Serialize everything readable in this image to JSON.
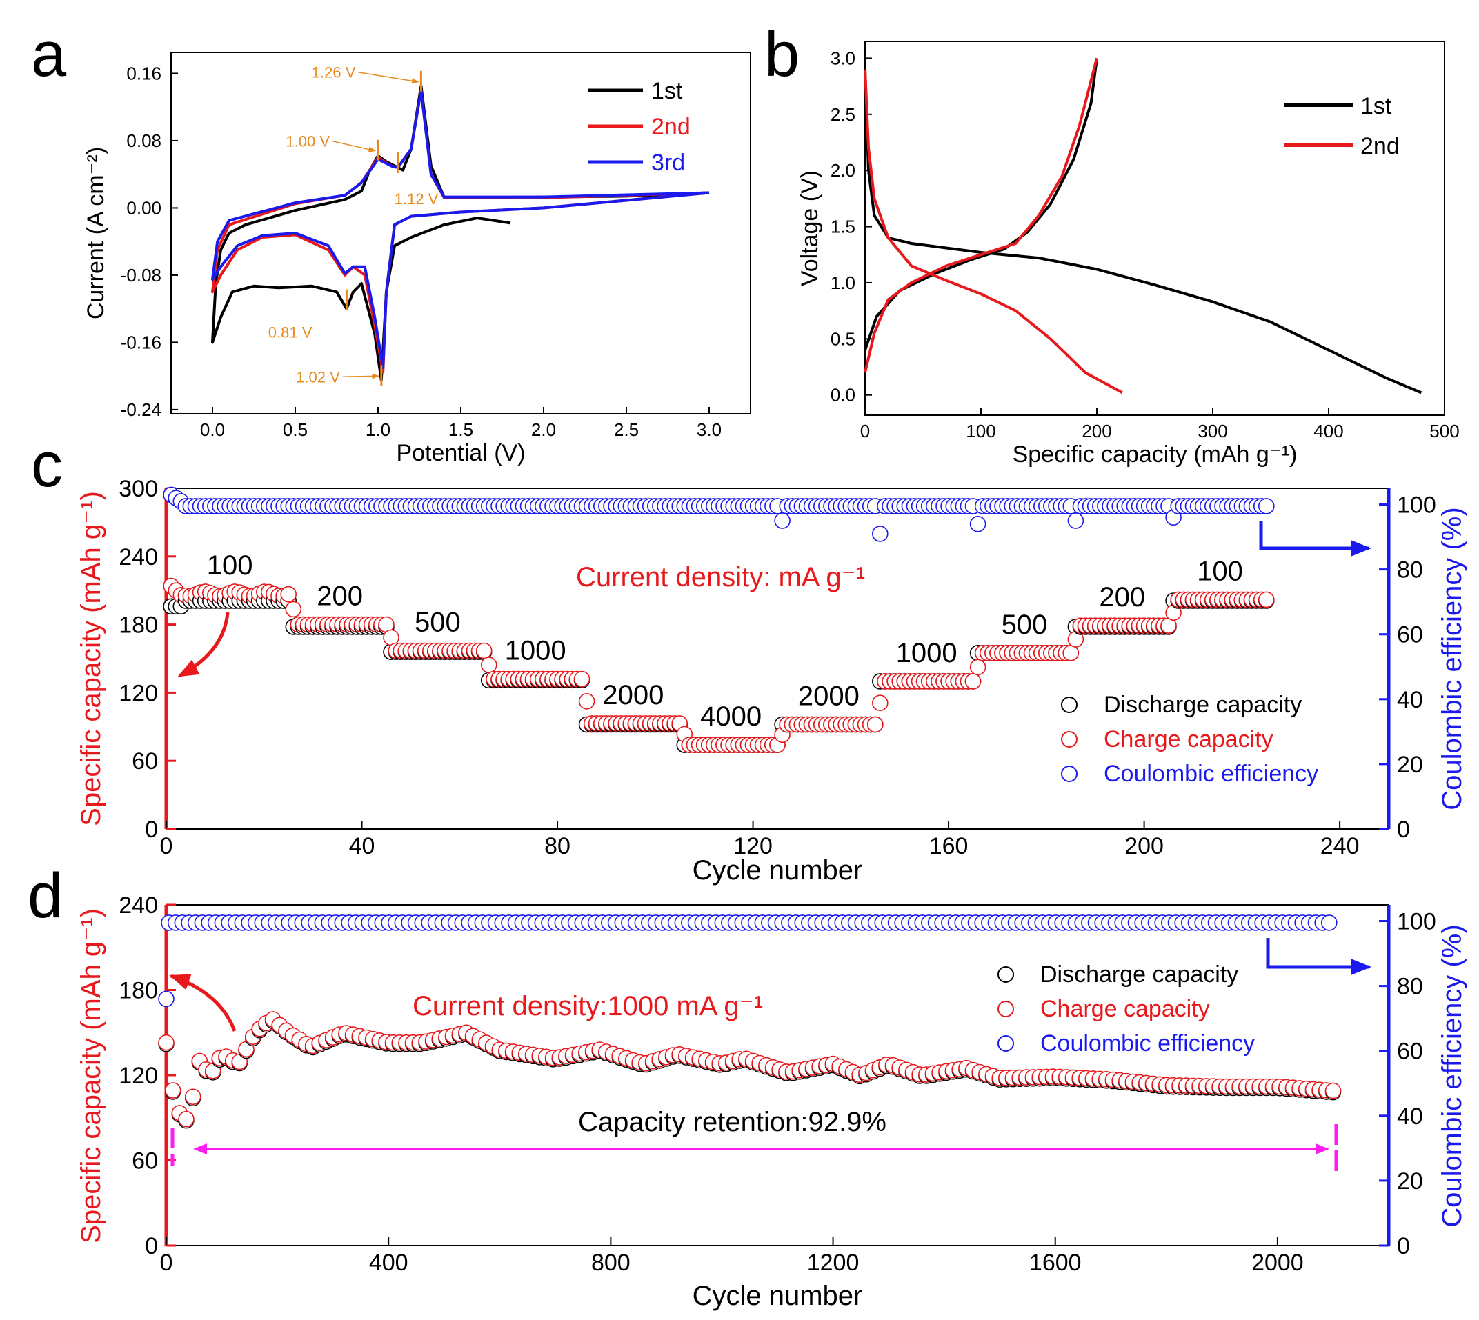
{
  "panels": {
    "a": "a",
    "b": "b",
    "c": "c",
    "d": "d"
  },
  "chart_data": [
    {
      "panel": "a",
      "type": "line",
      "title": "",
      "xlabel": "Potential (V)",
      "ylabel": "Current (A cm⁻²)",
      "xlim": [
        -0.25,
        3.25
      ],
      "ylim": [
        -0.245,
        0.185
      ],
      "x_ticks": [
        "0.0",
        "0.5",
        "1.0",
        "1.5",
        "2.0",
        "2.5",
        "3.0"
      ],
      "y_ticks": [
        "0.16",
        "0.08",
        "0.00",
        "-0.08",
        "-0.16",
        "-0.24"
      ],
      "legend": [
        {
          "label": "1st",
          "color": "#000000"
        },
        {
          "label": "2nd",
          "color": "#e8191c"
        },
        {
          "label": "3rd",
          "color": "#1a1aef"
        }
      ],
      "annotations": [
        {
          "text": "1.26 V",
          "x": 1.26,
          "y": 0.145
        },
        {
          "text": "1.00 V",
          "x": 1.0,
          "y": 0.063
        },
        {
          "text": "1.12 V",
          "x": 1.12,
          "y": 0.048
        },
        {
          "text": "0.81 V",
          "x": 0.81,
          "y": -0.115
        },
        {
          "text": "1.02 V",
          "x": 1.02,
          "y": -0.205
        }
      ],
      "series": [
        {
          "name": "1st",
          "cathodic": [
            [
              1.8,
              -0.018
            ],
            [
              1.6,
              -0.012
            ],
            [
              1.4,
              -0.02
            ],
            [
              1.2,
              -0.035
            ],
            [
              1.1,
              -0.045
            ],
            [
              1.05,
              -0.1
            ],
            [
              1.02,
              -0.205
            ],
            [
              0.98,
              -0.15
            ],
            [
              0.9,
              -0.09
            ],
            [
              0.85,
              -0.1
            ],
            [
              0.81,
              -0.12
            ],
            [
              0.75,
              -0.1
            ],
            [
              0.6,
              -0.093
            ],
            [
              0.4,
              -0.095
            ],
            [
              0.25,
              -0.093
            ],
            [
              0.12,
              -0.1
            ],
            [
              0.05,
              -0.13
            ],
            [
              0.0,
              -0.16
            ]
          ],
          "anodic": [
            [
              0.0,
              -0.16
            ],
            [
              0.02,
              -0.09
            ],
            [
              0.05,
              -0.05
            ],
            [
              0.1,
              -0.03
            ],
            [
              0.2,
              -0.02
            ],
            [
              0.5,
              -0.003
            ],
            [
              0.8,
              0.01
            ],
            [
              0.9,
              0.02
            ],
            [
              0.95,
              0.045
            ],
            [
              1.0,
              0.062
            ],
            [
              1.05,
              0.055
            ],
            [
              1.1,
              0.05
            ],
            [
              1.15,
              0.045
            ],
            [
              1.2,
              0.07
            ],
            [
              1.26,
              0.145
            ],
            [
              1.32,
              0.05
            ],
            [
              1.4,
              0.012
            ],
            [
              2.0,
              0.013
            ],
            [
              2.5,
              0.014
            ],
            [
              3.0,
              0.018
            ]
          ]
        },
        {
          "name": "2nd",
          "cathodic": [
            [
              3.0,
              0.018
            ],
            [
              2.0,
              0.0
            ],
            [
              1.5,
              -0.005
            ],
            [
              1.2,
              -0.01
            ],
            [
              1.1,
              -0.02
            ],
            [
              1.05,
              -0.1
            ],
            [
              1.03,
              -0.195
            ],
            [
              0.98,
              -0.14
            ],
            [
              0.92,
              -0.08
            ],
            [
              0.85,
              -0.07
            ],
            [
              0.8,
              -0.08
            ],
            [
              0.7,
              -0.05
            ],
            [
              0.5,
              -0.032
            ],
            [
              0.3,
              -0.035
            ],
            [
              0.15,
              -0.05
            ],
            [
              0.05,
              -0.08
            ],
            [
              0.0,
              -0.1
            ]
          ],
          "anodic": [
            [
              0.0,
              -0.1
            ],
            [
              0.03,
              -0.05
            ],
            [
              0.1,
              -0.02
            ],
            [
              0.5,
              0.005
            ],
            [
              0.8,
              0.015
            ],
            [
              0.9,
              0.03
            ],
            [
              1.0,
              0.06
            ],
            [
              1.08,
              0.05
            ],
            [
              1.12,
              0.048
            ],
            [
              1.2,
              0.07
            ],
            [
              1.26,
              0.14
            ],
            [
              1.32,
              0.04
            ],
            [
              1.4,
              0.012
            ],
            [
              2.0,
              0.012
            ],
            [
              3.0,
              0.018
            ]
          ]
        },
        {
          "name": "3rd",
          "cathodic": [
            [
              3.0,
              0.018
            ],
            [
              2.0,
              0.0
            ],
            [
              1.5,
              -0.005
            ],
            [
              1.2,
              -0.01
            ],
            [
              1.1,
              -0.02
            ],
            [
              1.05,
              -0.1
            ],
            [
              1.03,
              -0.19
            ],
            [
              0.98,
              -0.13
            ],
            [
              0.92,
              -0.07
            ],
            [
              0.85,
              -0.07
            ],
            [
              0.8,
              -0.078
            ],
            [
              0.7,
              -0.045
            ],
            [
              0.5,
              -0.03
            ],
            [
              0.3,
              -0.033
            ],
            [
              0.15,
              -0.045
            ],
            [
              0.05,
              -0.07
            ],
            [
              0.0,
              -0.085
            ]
          ],
          "anodic": [
            [
              0.0,
              -0.085
            ],
            [
              0.03,
              -0.04
            ],
            [
              0.1,
              -0.015
            ],
            [
              0.5,
              0.006
            ],
            [
              0.8,
              0.015
            ],
            [
              0.9,
              0.03
            ],
            [
              1.0,
              0.058
            ],
            [
              1.08,
              0.05
            ],
            [
              1.12,
              0.048
            ],
            [
              1.2,
              0.07
            ],
            [
              1.26,
              0.14
            ],
            [
              1.32,
              0.04
            ],
            [
              1.4,
              0.013
            ],
            [
              2.0,
              0.013
            ],
            [
              3.0,
              0.018
            ]
          ]
        }
      ]
    },
    {
      "panel": "b",
      "type": "line",
      "title": "",
      "xlabel": "Specific capacity (mAh g⁻¹)",
      "ylabel": "Voltage (V)",
      "xlim": [
        0,
        500
      ],
      "ylim": [
        -0.18,
        3.15
      ],
      "x_ticks": [
        "0",
        "100",
        "200",
        "300",
        "400",
        "500"
      ],
      "y_ticks": [
        "0.0",
        "0.5",
        "1.0",
        "1.5",
        "2.0",
        "2.5",
        "3.0"
      ],
      "legend": [
        {
          "label": "1st",
          "color": "#000000"
        },
        {
          "label": "2nd",
          "color": "#e8191c"
        }
      ],
      "series": [
        {
          "name": "1st",
          "discharge": [
            [
              0,
              2.9
            ],
            [
              3,
              2.0
            ],
            [
              8,
              1.6
            ],
            [
              20,
              1.4
            ],
            [
              40,
              1.35
            ],
            [
              100,
              1.27
            ],
            [
              150,
              1.22
            ],
            [
              200,
              1.12
            ],
            [
              250,
              0.98
            ],
            [
              300,
              0.83
            ],
            [
              350,
              0.65
            ],
            [
              400,
              0.4
            ],
            [
              450,
              0.15
            ],
            [
              480,
              0.02
            ]
          ],
          "charge": [
            [
              0,
              0.4
            ],
            [
              10,
              0.7
            ],
            [
              30,
              0.93
            ],
            [
              60,
              1.08
            ],
            [
              90,
              1.2
            ],
            [
              120,
              1.3
            ],
            [
              140,
              1.45
            ],
            [
              160,
              1.7
            ],
            [
              180,
              2.1
            ],
            [
              195,
              2.6
            ],
            [
              200,
              3.0
            ]
          ]
        },
        {
          "name": "2nd",
          "discharge": [
            [
              0,
              2.9
            ],
            [
              3,
              2.2
            ],
            [
              8,
              1.75
            ],
            [
              20,
              1.4
            ],
            [
              40,
              1.15
            ],
            [
              70,
              1.02
            ],
            [
              100,
              0.9
            ],
            [
              130,
              0.75
            ],
            [
              160,
              0.5
            ],
            [
              190,
              0.2
            ],
            [
              222,
              0.02
            ]
          ],
          "charge": [
            [
              0,
              0.2
            ],
            [
              8,
              0.55
            ],
            [
              20,
              0.85
            ],
            [
              40,
              1.0
            ],
            [
              70,
              1.15
            ],
            [
              100,
              1.25
            ],
            [
              130,
              1.35
            ],
            [
              150,
              1.6
            ],
            [
              170,
              1.95
            ],
            [
              185,
              2.4
            ],
            [
              200,
              3.0
            ]
          ]
        }
      ]
    },
    {
      "panel": "c",
      "type": "scatter",
      "title": "Current density: mA g⁻¹",
      "xlabel": "Cycle number",
      "ylabel": "Specific capacity (mAh g⁻¹)",
      "y2label": "Coulombic efficiency (%)",
      "xlim": [
        0,
        250
      ],
      "ylim": [
        0,
        300
      ],
      "y2lim": [
        0,
        105
      ],
      "x_ticks": [
        "0",
        "40",
        "80",
        "120",
        "160",
        "200",
        "240"
      ],
      "y_ticks": [
        "0",
        "60",
        "120",
        "180",
        "240",
        "300"
      ],
      "y2_ticks": [
        "0",
        "20",
        "40",
        "60",
        "80",
        "100"
      ],
      "rates": [
        {
          "label": "100",
          "cycle_start": 1,
          "cycle_end": 25,
          "discharge_capacity": 201,
          "charge_capacity": 207
        },
        {
          "label": "200",
          "cycle_start": 26,
          "cycle_end": 45,
          "discharge_capacity": 178,
          "charge_capacity": 180
        },
        {
          "label": "500",
          "cycle_start": 46,
          "cycle_end": 65,
          "discharge_capacity": 156,
          "charge_capacity": 157
        },
        {
          "label": "1000",
          "cycle_start": 66,
          "cycle_end": 85,
          "discharge_capacity": 131,
          "charge_capacity": 132
        },
        {
          "label": "2000",
          "cycle_start": 86,
          "cycle_end": 105,
          "discharge_capacity": 92,
          "charge_capacity": 93
        },
        {
          "label": "4000",
          "cycle_start": 106,
          "cycle_end": 125,
          "discharge_capacity": 74,
          "charge_capacity": 74
        },
        {
          "label": "2000",
          "cycle_start": 126,
          "cycle_end": 145,
          "discharge_capacity": 92,
          "charge_capacity": 92
        },
        {
          "label": "1000",
          "cycle_start": 146,
          "cycle_end": 165,
          "discharge_capacity": 130,
          "charge_capacity": 130
        },
        {
          "label": "500",
          "cycle_start": 166,
          "cycle_end": 185,
          "discharge_capacity": 155,
          "charge_capacity": 155
        },
        {
          "label": "200",
          "cycle_start": 186,
          "cycle_end": 205,
          "discharge_capacity": 178,
          "charge_capacity": 179
        },
        {
          "label": "100",
          "cycle_start": 206,
          "cycle_end": 225,
          "discharge_capacity": 201,
          "charge_capacity": 202
        }
      ],
      "coulombic_efficiency": {
        "typical": 99.5,
        "first_cycles": [
          103,
          102,
          101
        ],
        "dips": [
          [
            126,
            95
          ],
          [
            146,
            91
          ],
          [
            166,
            94
          ],
          [
            186,
            95
          ],
          [
            206,
            96
          ]
        ]
      },
      "legend": [
        {
          "label": "Discharge capacity",
          "color": "#000000"
        },
        {
          "label": "Charge capacity",
          "color": "#e8191c"
        },
        {
          "label": "Coulombic efficiency",
          "color": "#1a1aef"
        }
      ]
    },
    {
      "panel": "d",
      "type": "scatter",
      "title": "Current density:1000  mA g⁻¹",
      "annotation": "Capacity retention:92.9%",
      "xlabel": "Cycle number",
      "ylabel": "Specific capacity (mAh g⁻¹)",
      "y2label": "Coulombic efficiency (%)",
      "xlim": [
        0,
        2200
      ],
      "ylim": [
        0,
        240
      ],
      "y2lim": [
        0,
        105
      ],
      "x_ticks": [
        "0",
        "400",
        "800",
        "1200",
        "1600",
        "2000"
      ],
      "y_ticks": [
        "0",
        "60",
        "120",
        "180",
        "240"
      ],
      "y2_ticks": [
        "0",
        "20",
        "40",
        "60",
        "80",
        "100"
      ],
      "capacity_trend": [
        [
          0,
          143
        ],
        [
          10,
          112
        ],
        [
          25,
          92
        ],
        [
          40,
          88
        ],
        [
          60,
          130
        ],
        [
          80,
          120
        ],
        [
          100,
          135
        ],
        [
          130,
          128
        ],
        [
          160,
          150
        ],
        [
          190,
          160
        ],
        [
          220,
          150
        ],
        [
          260,
          140
        ],
        [
          320,
          150
        ],
        [
          400,
          143
        ],
        [
          460,
          143
        ],
        [
          540,
          150
        ],
        [
          600,
          138
        ],
        [
          700,
          132
        ],
        [
          780,
          138
        ],
        [
          860,
          128
        ],
        [
          920,
          135
        ],
        [
          1000,
          128
        ],
        [
          1040,
          132
        ],
        [
          1120,
          122
        ],
        [
          1200,
          128
        ],
        [
          1250,
          120
        ],
        [
          1300,
          128
        ],
        [
          1360,
          120
        ],
        [
          1440,
          125
        ],
        [
          1500,
          118
        ],
        [
          1600,
          119
        ],
        [
          1700,
          117
        ],
        [
          1800,
          113
        ],
        [
          1900,
          112
        ],
        [
          2000,
          112
        ],
        [
          2100,
          109
        ]
      ],
      "coulombic_efficiency": {
        "typical": 99.5,
        "first": 76
      },
      "legend": [
        {
          "label": "Discharge capacity",
          "color": "#000000"
        },
        {
          "label": "Charge capacity",
          "color": "#e8191c"
        },
        {
          "label": "Coulombic efficiency",
          "color": "#1a1aef"
        }
      ]
    }
  ]
}
